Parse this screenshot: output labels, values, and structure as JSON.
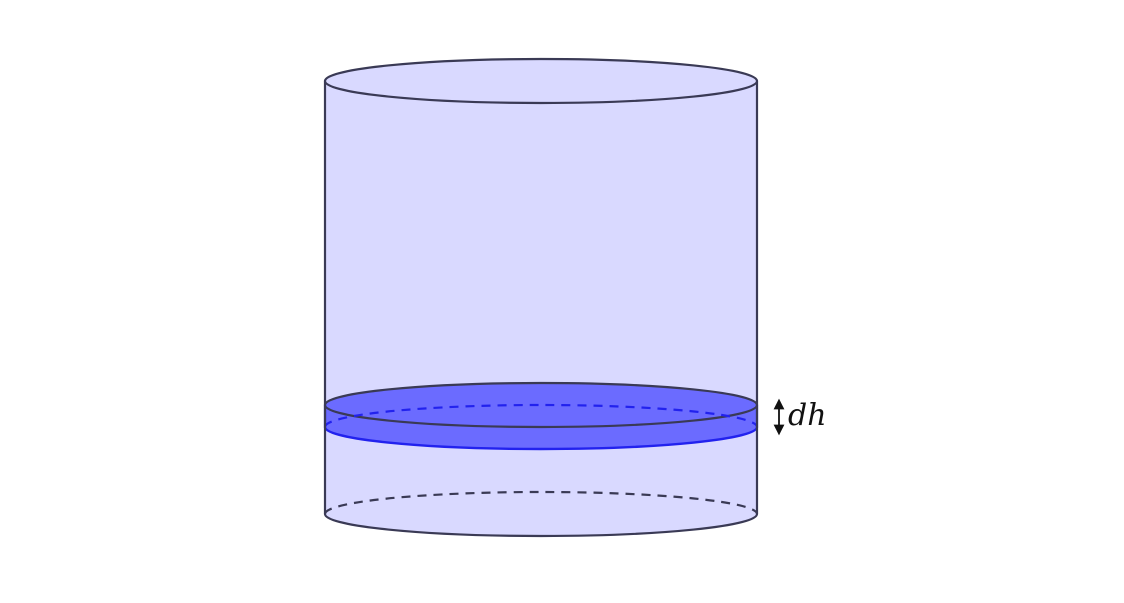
{
  "diagram": {
    "label_dh": "dh",
    "colors": {
      "cylinder_fill": "#d9d9ff",
      "cylinder_stroke": "#3a3a55",
      "slice_fill": "#6b6bff",
      "slice_stroke": "#2222ee",
      "arrow": "#111111"
    }
  }
}
